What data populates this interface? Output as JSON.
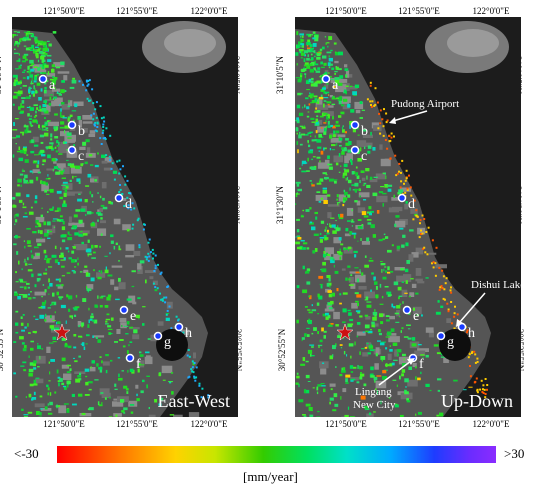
{
  "map": {
    "lon_ticks": [
      "121°50'0\"E",
      "121°55'0\"E",
      "122°0'0\"E"
    ],
    "lat_ticks": [
      "31°10'5\"N",
      "31°1'30\"N",
      "30°52'55\"N"
    ],
    "panels": [
      {
        "title": "East-West",
        "points": [
          "a",
          "b",
          "c",
          "d",
          "e",
          "f",
          "g",
          "h"
        ],
        "annotations": []
      },
      {
        "title": "Up-Down",
        "points": [
          "a",
          "b",
          "c",
          "d",
          "e",
          "f",
          "g",
          "h"
        ],
        "annotations": [
          "Pudong Airport",
          "Dishui Lake",
          "Lingang",
          "New City"
        ]
      }
    ]
  },
  "colorbar": {
    "min_label": "<-30",
    "max_label": ">30",
    "unit": "[mm/year]",
    "colors": [
      "#ff0000",
      "#ff7a00",
      "#ffd200",
      "#c8e600",
      "#33cc00",
      "#00e060",
      "#00e0c8",
      "#00aaff",
      "#1e3cff",
      "#6a2cff",
      "#8a2cff"
    ]
  }
}
